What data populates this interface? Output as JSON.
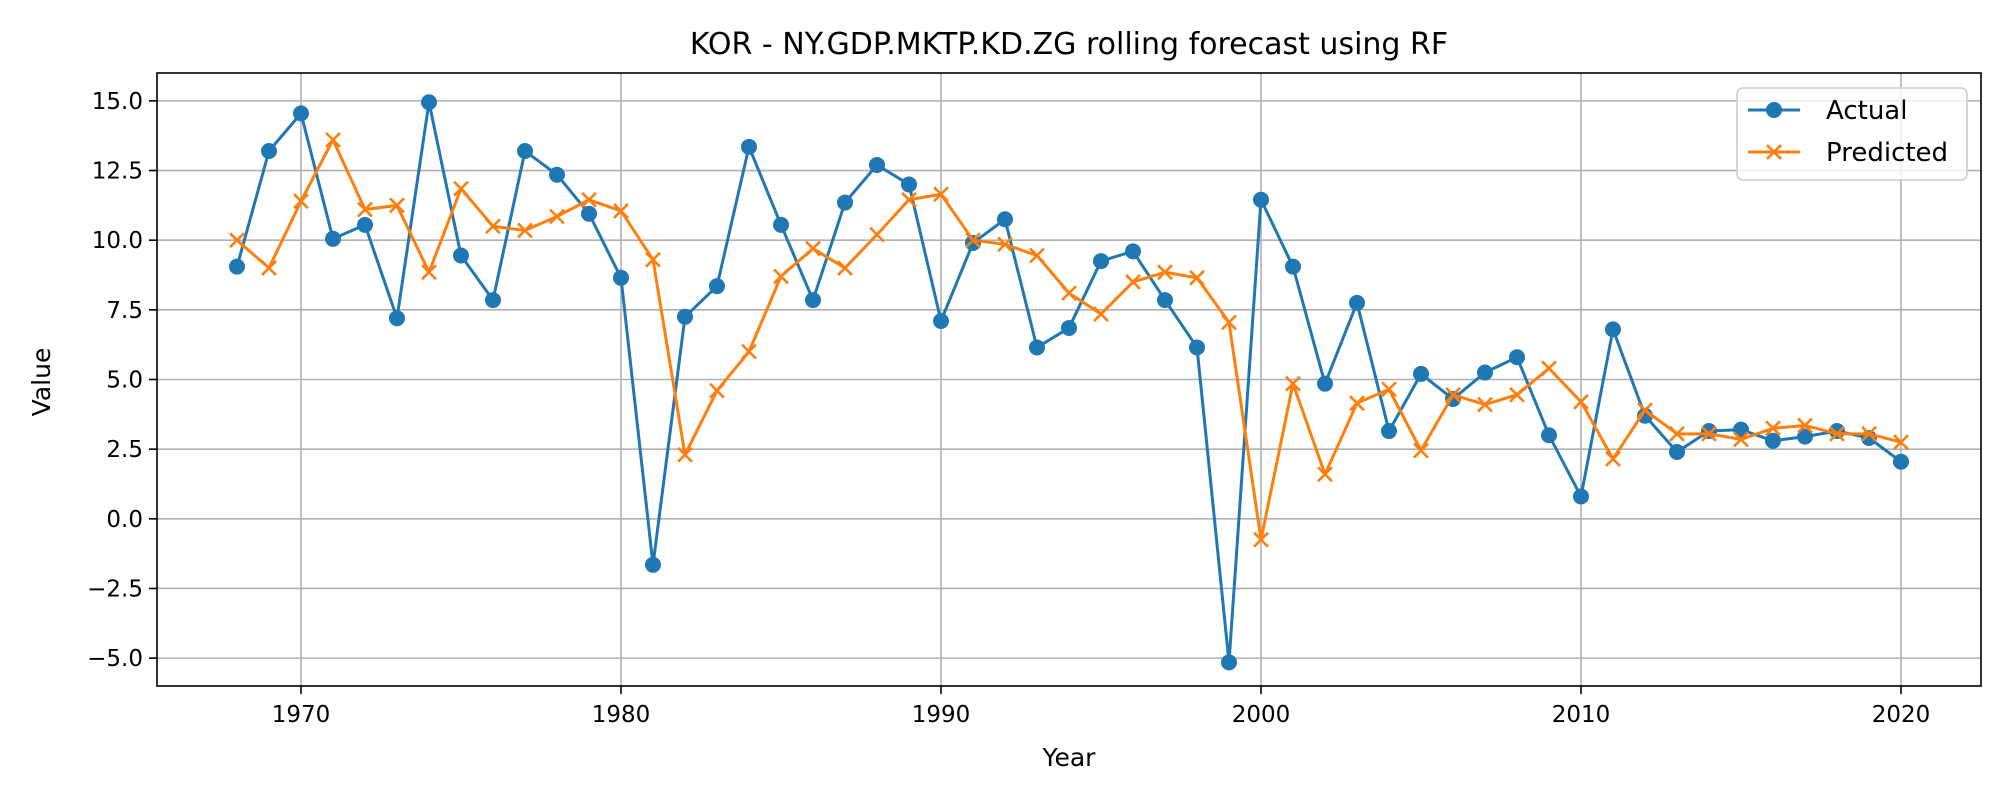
{
  "chart_data": {
    "type": "line",
    "title": "KOR - NY.GDP.MKTP.KD.ZG rolling forecast using RF",
    "xlabel": "Year",
    "ylabel": "Value",
    "xlim": [
      1965.5,
      2022.5
    ],
    "ylim": [
      -6.0,
      16.0
    ],
    "xticks": [
      1970,
      1980,
      1990,
      2000,
      2010,
      2020
    ],
    "xtick_labels": [
      "1970",
      "1980",
      "1990",
      "2000",
      "2010",
      "2020"
    ],
    "yticks": [
      -5.0,
      -2.5,
      0.0,
      2.5,
      5.0,
      7.5,
      10.0,
      12.5,
      15.0
    ],
    "ytick_labels": [
      "−5.0",
      "−2.5",
      "0.0",
      "2.5",
      "5.0",
      "7.5",
      "10.0",
      "12.5",
      "15.0"
    ],
    "grid": true,
    "legend_position": "top-right",
    "x": [
      1968,
      1969,
      1970,
      1971,
      1972,
      1973,
      1974,
      1975,
      1976,
      1977,
      1978,
      1979,
      1980,
      1981,
      1982,
      1983,
      1984,
      1985,
      1986,
      1987,
      1988,
      1989,
      1990,
      1991,
      1992,
      1993,
      1994,
      1995,
      1996,
      1997,
      1998,
      1999,
      2000,
      2001,
      2002,
      2003,
      2004,
      2005,
      2006,
      2007,
      2008,
      2009,
      2010,
      2011,
      2012,
      2013,
      2014,
      2015,
      2016,
      2017,
      2018,
      2019,
      2020
    ],
    "series": [
      {
        "name": "Actual",
        "color": "#1f77b4",
        "marker": "circle",
        "values": [
          9.05,
          13.2,
          14.55,
          10.05,
          10.55,
          7.2,
          14.95,
          9.45,
          7.85,
          13.2,
          12.35,
          10.95,
          8.65,
          -1.65,
          7.25,
          8.35,
          13.35,
          10.55,
          7.85,
          11.35,
          12.7,
          12.0,
          7.1,
          9.9,
          10.75,
          6.15,
          6.85,
          9.25,
          9.6,
          7.85,
          6.15,
          -5.15,
          11.45,
          9.05,
          4.85,
          7.75,
          3.15,
          5.2,
          4.3,
          5.25,
          5.8,
          3.0,
          0.8,
          6.8,
          3.7,
          2.4,
          3.15,
          3.2,
          2.8,
          2.95,
          3.15,
          2.9,
          2.05
        ]
      },
      {
        "name": "Predicted",
        "color": "#ff7f0e",
        "marker": "x",
        "values": [
          10.0,
          9.0,
          11.4,
          13.6,
          11.1,
          11.25,
          8.85,
          11.85,
          10.5,
          10.35,
          10.85,
          11.45,
          11.05,
          9.3,
          2.3,
          4.6,
          6.0,
          8.7,
          9.7,
          9.0,
          10.2,
          11.45,
          11.65,
          10.0,
          9.85,
          9.45,
          8.1,
          7.35,
          8.5,
          8.85,
          8.65,
          7.05,
          -0.75,
          4.85,
          1.6,
          4.15,
          4.65,
          2.45,
          4.45,
          4.1,
          4.45,
          5.4,
          4.2,
          2.15,
          3.9,
          3.05,
          3.05,
          2.85,
          3.25,
          3.35,
          3.05,
          3.05,
          2.75
        ]
      }
    ]
  }
}
